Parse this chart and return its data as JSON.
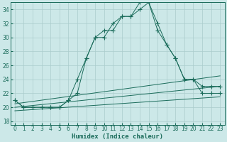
{
  "title": "",
  "xlabel": "Humidex (Indice chaleur)",
  "xlim": [
    -0.5,
    23.5
  ],
  "ylim": [
    17.5,
    35.0
  ],
  "xticks": [
    0,
    1,
    2,
    3,
    4,
    5,
    6,
    7,
    8,
    9,
    10,
    11,
    12,
    13,
    14,
    15,
    16,
    17,
    18,
    19,
    20,
    21,
    22,
    23
  ],
  "yticks": [
    18,
    20,
    22,
    24,
    26,
    28,
    30,
    32,
    34
  ],
  "bg_color": "#cce8e8",
  "grid_color": "#aacccc",
  "line_color": "#1a6b5a",
  "series": [
    {
      "x": [
        0,
        1,
        2,
        3,
        4,
        5,
        6,
        7,
        8,
        9,
        10,
        11,
        12,
        13,
        14,
        15,
        16,
        17,
        18,
        19,
        20,
        21,
        22,
        23
      ],
      "y": [
        21,
        20,
        20,
        20,
        20,
        20,
        21,
        22,
        27,
        30,
        31,
        31,
        33,
        33,
        35,
        35,
        32,
        29,
        27,
        24,
        24,
        23,
        23,
        23
      ],
      "marker": "+",
      "ms": 4
    },
    {
      "x": [
        0,
        1,
        2,
        3,
        4,
        5,
        6,
        7,
        8,
        9,
        10,
        11,
        12,
        13,
        14,
        15,
        16,
        17,
        18,
        19,
        20,
        21,
        22,
        23
      ],
      "y": [
        21,
        20,
        20,
        20,
        20,
        20,
        21,
        24,
        27,
        30,
        30,
        32,
        33,
        33,
        34,
        35,
        31,
        29,
        27,
        24,
        24,
        22,
        22,
        22
      ],
      "marker": "+",
      "ms": 4
    },
    {
      "x": [
        0,
        23
      ],
      "y": [
        20.5,
        24.5
      ],
      "marker": null,
      "ms": 0
    },
    {
      "x": [
        0,
        23
      ],
      "y": [
        20.0,
        23.0
      ],
      "marker": null,
      "ms": 0
    },
    {
      "x": [
        0,
        23
      ],
      "y": [
        19.5,
        21.5
      ],
      "marker": null,
      "ms": 0
    }
  ]
}
